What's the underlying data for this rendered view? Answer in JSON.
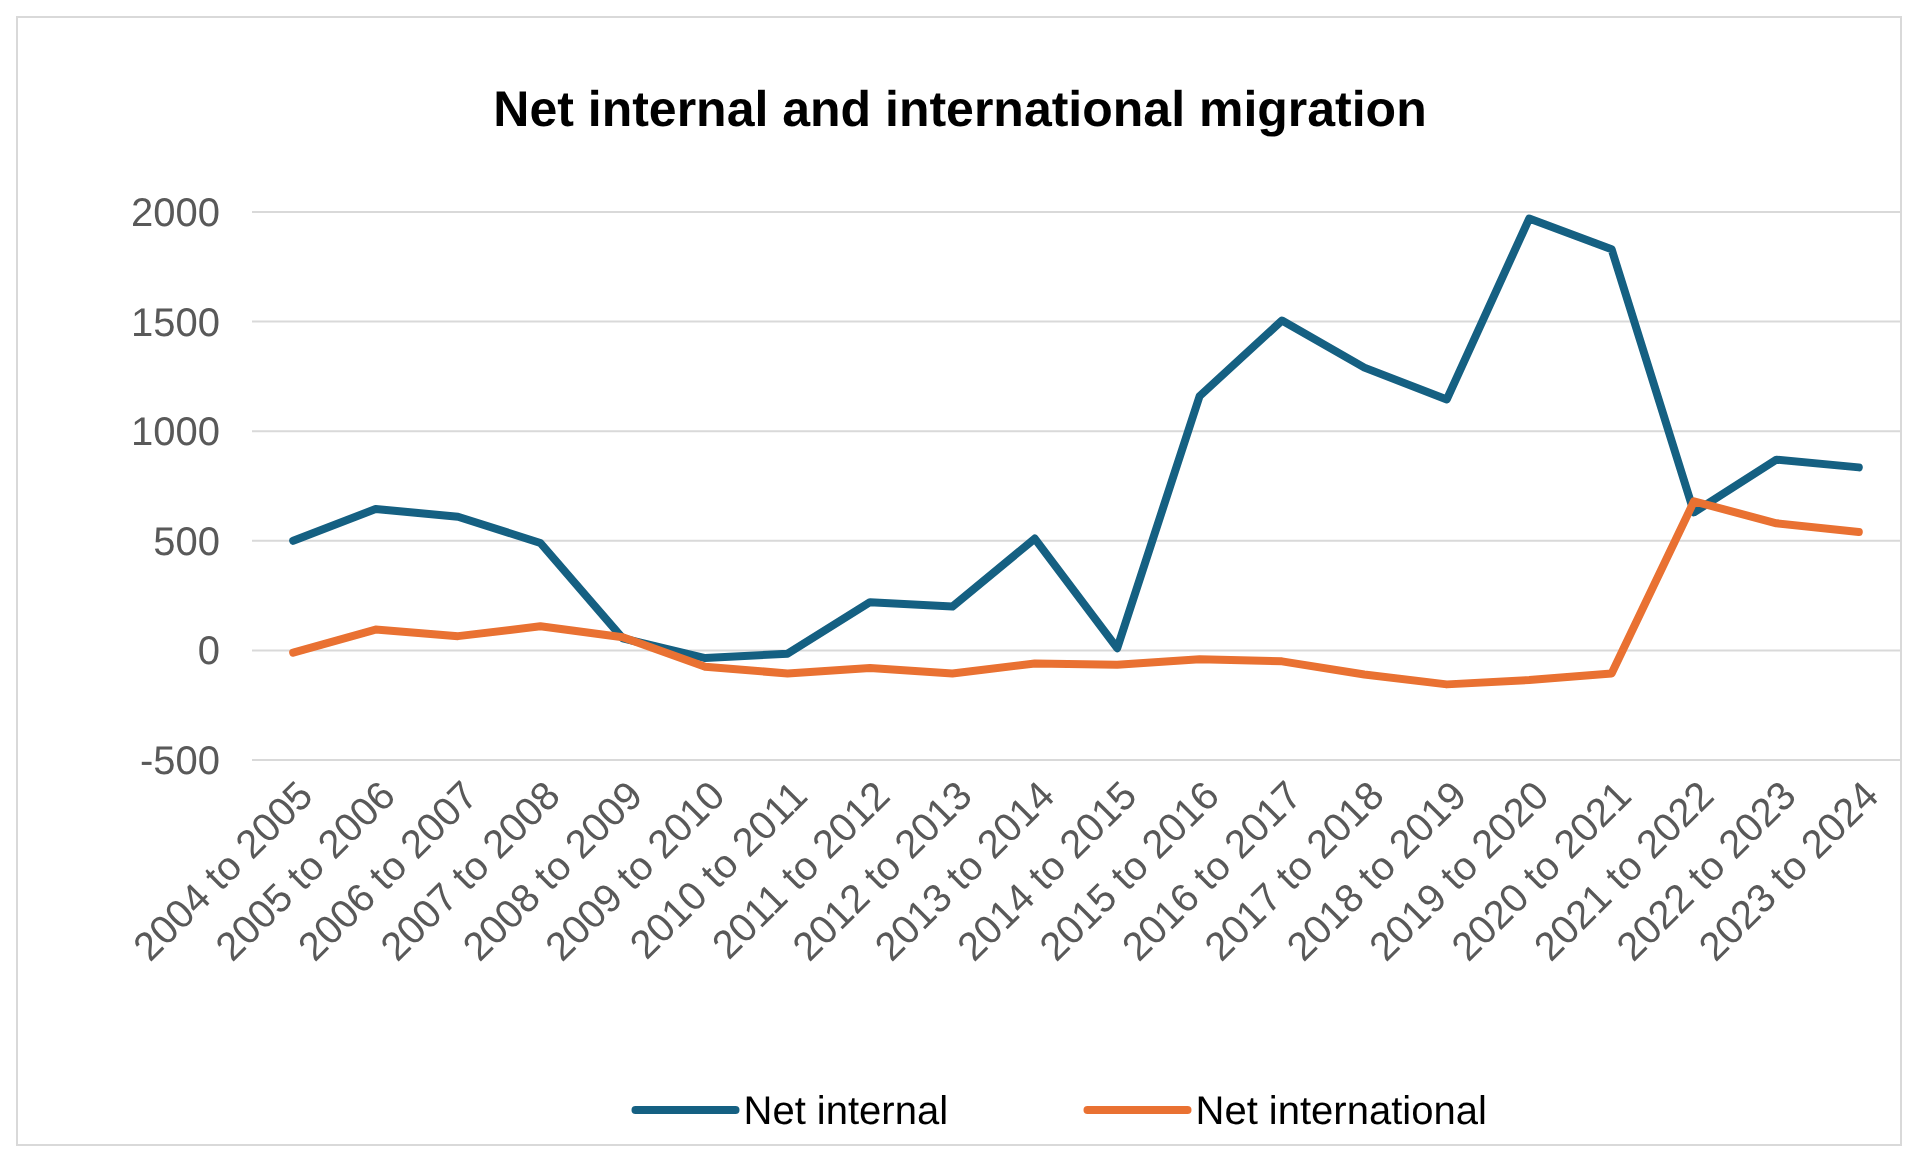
{
  "chart_data": {
    "type": "line",
    "title": "Net internal and international migration",
    "categories": [
      "2004 to 2005",
      "2005 to 2006",
      "2006 to 2007",
      "2007 to 2008",
      "2008 to 2009",
      "2009 to 2010",
      "2010 to 2011",
      "2011 to 2012",
      "2012 to 2013",
      "2013 to 2014",
      "2014 to 2015",
      "2015 to 2016",
      "2016 to 2017",
      "2017 to 2018",
      "2018 to 2019",
      "2019 to 2020",
      "2020 to 2021",
      "2021 to 2022",
      "2022 to 2023",
      "2023 to 2024"
    ],
    "series": [
      {
        "name": "Net internal",
        "color": "#156082",
        "values": [
          500,
          645,
          610,
          490,
          55,
          -35,
          -15,
          220,
          200,
          510,
          10,
          1160,
          1505,
          1290,
          1145,
          1970,
          1830,
          630,
          870,
          835
        ]
      },
      {
        "name": "Net international",
        "color": "#e97132",
        "values": [
          -10,
          95,
          65,
          110,
          60,
          -75,
          -105,
          -80,
          -105,
          -60,
          -65,
          -40,
          -50,
          -110,
          -155,
          -135,
          -105,
          680,
          580,
          540
        ]
      }
    ],
    "ylim": [
      -500,
      2000
    ],
    "yticks": [
      -500,
      0,
      500,
      1000,
      1500,
      2000
    ],
    "grid": "y",
    "legend": "bottom",
    "marker": "none",
    "line_style": "solid"
  }
}
